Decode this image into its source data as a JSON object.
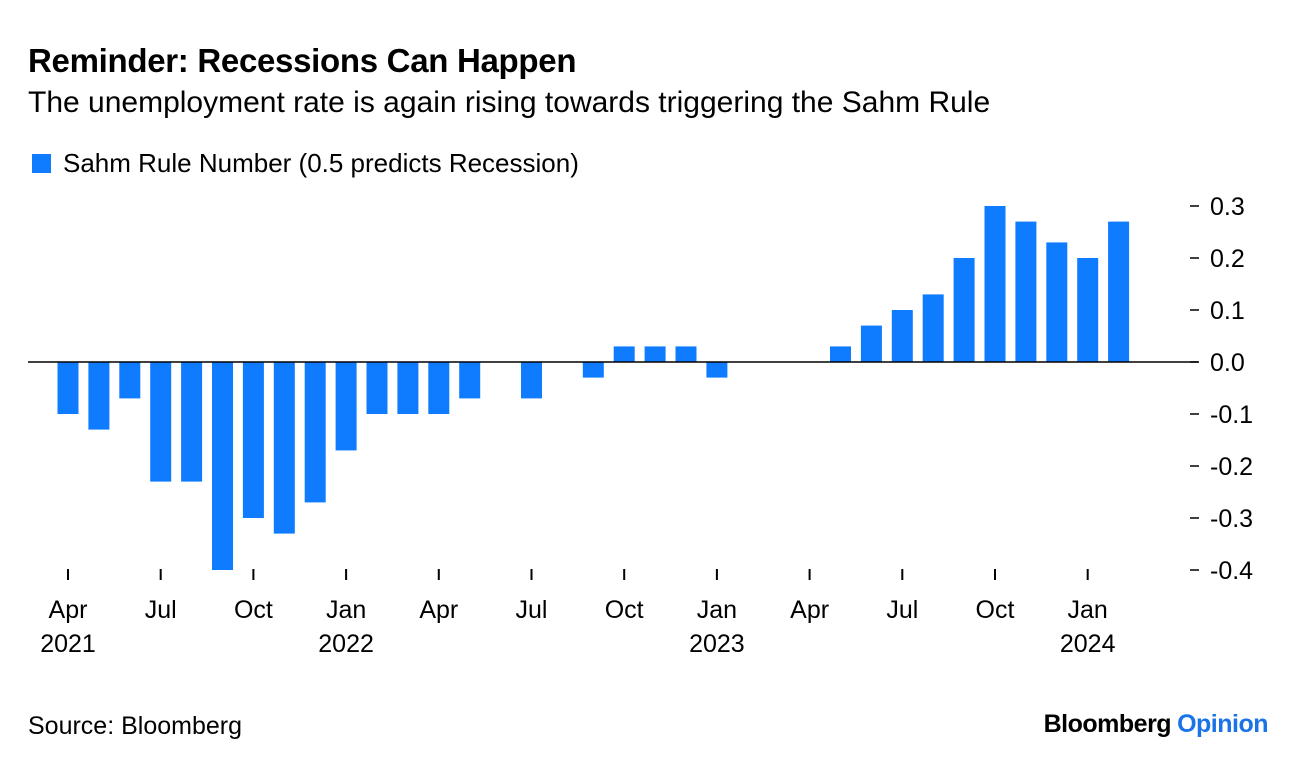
{
  "header": {
    "title": "Reminder: Recessions Can Happen",
    "subtitle": "The unemployment rate is again rising towards triggering the Sahm Rule"
  },
  "footer": {
    "source": "Source: Bloomberg",
    "brand_name": "Bloomberg",
    "brand_section": "Opinion"
  },
  "colors": {
    "bar": "#0f7cff",
    "axis": "#000000"
  },
  "chart_data": {
    "type": "bar",
    "title": "Reminder: Recessions Can Happen",
    "subtitle": "The unemployment rate is again rising towards triggering the Sahm Rule",
    "legend_placement": "top-left",
    "grid": false,
    "ylim": [
      -0.4,
      0.3
    ],
    "yticks": [
      0.3,
      0.2,
      0.1,
      0.0,
      -0.1,
      -0.2,
      -0.3,
      -0.4
    ],
    "ytick_labels": [
      "0.3",
      "0.2",
      "0.1",
      "0.0",
      "-0.1",
      "-0.2",
      "-0.3",
      "-0.4"
    ],
    "x_tick_labels": [
      {
        "month": "Apr",
        "year": "2021",
        "index": 0
      },
      {
        "month": "Jul",
        "year": "",
        "index": 3
      },
      {
        "month": "Oct",
        "year": "",
        "index": 6
      },
      {
        "month": "Jan",
        "year": "2022",
        "index": 9
      },
      {
        "month": "Apr",
        "year": "",
        "index": 12
      },
      {
        "month": "Jul",
        "year": "",
        "index": 15
      },
      {
        "month": "Oct",
        "year": "",
        "index": 18
      },
      {
        "month": "Jan",
        "year": "2023",
        "index": 21
      },
      {
        "month": "Apr",
        "year": "",
        "index": 24
      },
      {
        "month": "Jul",
        "year": "",
        "index": 27
      },
      {
        "month": "Oct",
        "year": "",
        "index": 30
      },
      {
        "month": "Jan",
        "year": "2024",
        "index": 33
      }
    ],
    "categories": [
      "2021-04",
      "2021-05",
      "2021-06",
      "2021-07",
      "2021-08",
      "2021-09",
      "2021-10",
      "2021-11",
      "2021-12",
      "2022-01",
      "2022-02",
      "2022-03",
      "2022-04",
      "2022-05",
      "2022-06",
      "2022-07",
      "2022-08",
      "2022-09",
      "2022-10",
      "2022-11",
      "2022-12",
      "2023-01",
      "2023-02",
      "2023-03",
      "2023-04",
      "2023-05",
      "2023-06",
      "2023-07",
      "2023-08",
      "2023-09",
      "2023-10",
      "2023-11",
      "2023-12",
      "2024-01",
      "2024-02"
    ],
    "series": [
      {
        "name": "Sahm Rule Number (0.5 predicts Recession)",
        "values": [
          -0.1,
          -0.13,
          -0.07,
          -0.23,
          -0.23,
          -0.4,
          -0.3,
          -0.33,
          -0.27,
          -0.17,
          -0.1,
          -0.1,
          -0.1,
          -0.07,
          0.0,
          -0.07,
          0.0,
          -0.03,
          0.03,
          0.03,
          0.03,
          -0.03,
          0.0,
          0.0,
          0.0,
          0.03,
          0.07,
          0.1,
          0.13,
          0.2,
          0.3,
          0.27,
          0.23,
          0.2,
          0.27
        ]
      }
    ]
  }
}
